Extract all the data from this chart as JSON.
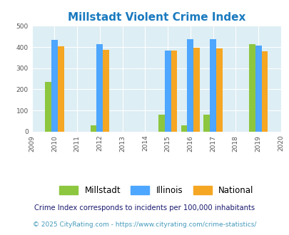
{
  "title": "Millstadt Violent Crime Index",
  "years": [
    2010,
    2012,
    2015,
    2016,
    2017,
    2019
  ],
  "millstadt": [
    235,
    30,
    80,
    30,
    80,
    413
  ],
  "illinois": [
    435,
    415,
    383,
    438,
    438,
    408
  ],
  "national": [
    405,
    387,
    383,
    397,
    394,
    379
  ],
  "color_millstadt": "#8dc63f",
  "color_illinois": "#4da6ff",
  "color_national": "#f5a623",
  "bg_color": "#ffffff",
  "plot_bg": "#ddeef4",
  "xlim": [
    2009,
    2020
  ],
  "ylim": [
    0,
    500
  ],
  "yticks": [
    0,
    100,
    200,
    300,
    400,
    500
  ],
  "xticks": [
    2009,
    2010,
    2011,
    2012,
    2013,
    2014,
    2015,
    2016,
    2017,
    2018,
    2019,
    2020
  ],
  "footnote1": "Crime Index corresponds to incidents per 100,000 inhabitants",
  "footnote2": "© 2025 CityRating.com - https://www.cityrating.com/crime-statistics/",
  "title_color": "#1a7abf",
  "footnote1_color": "#1a1a6e",
  "footnote2_color": "#4499bb",
  "bar_width": 0.28
}
